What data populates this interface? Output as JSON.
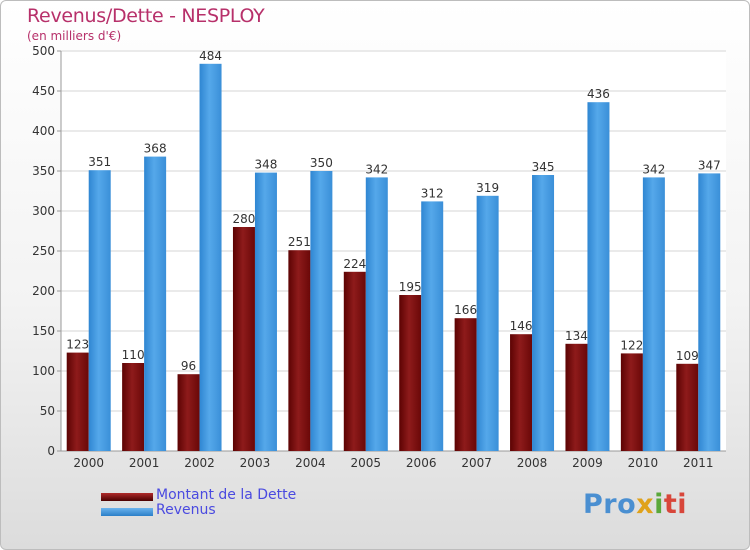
{
  "header": {
    "title": "Revenus/Dette - NESPLOY",
    "subtitle": "(en milliers d'€)"
  },
  "chart_data": {
    "type": "bar",
    "categories": [
      "2000",
      "2001",
      "2002",
      "2003",
      "2004",
      "2005",
      "2006",
      "2007",
      "2008",
      "2009",
      "2010",
      "2011"
    ],
    "series": [
      {
        "name": "Montant de la Dette",
        "color": "#7a0d0d",
        "values": [
          123,
          110,
          96,
          280,
          251,
          224,
          195,
          166,
          146,
          134,
          122,
          109
        ]
      },
      {
        "name": "Revenus",
        "color": "#3d93dc",
        "values": [
          351,
          368,
          484,
          348,
          350,
          342,
          312,
          319,
          345,
          436,
          342,
          347
        ]
      }
    ],
    "yticks": [
      0,
      50,
      100,
      150,
      200,
      250,
      300,
      350,
      400,
      450,
      500
    ],
    "ylim": [
      0,
      500
    ],
    "grid": true,
    "legend_position": "bottom-left"
  },
  "legend": {
    "items": [
      {
        "label": "Montant de la Dette",
        "color": "#7a0d0d"
      },
      {
        "label": "Revenus",
        "color": "#3d93dc"
      }
    ]
  },
  "logo": {
    "part1": "Pro",
    "part2": "x",
    "part3": "i",
    "part4": "ti"
  }
}
